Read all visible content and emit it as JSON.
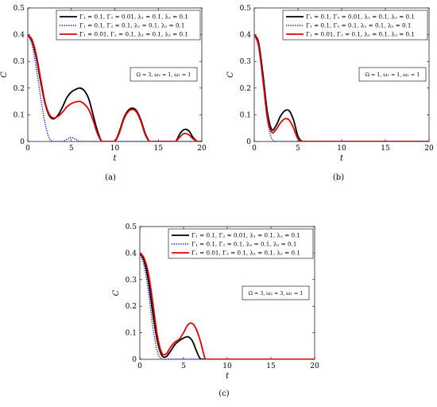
{
  "chart_data": [
    {
      "type": "line",
      "caption": "(a)",
      "xlabel": "t",
      "ylabel": "C",
      "xlim": [
        0,
        20
      ],
      "ylim": [
        0,
        0.5
      ],
      "xticks": [
        "0",
        "5",
        "10",
        "15",
        "20"
      ],
      "yticks": [
        "0",
        "0.1",
        "0.2",
        "0.3",
        "0.4",
        "0.5"
      ],
      "legend_position": "top-right",
      "annotation": "Ω = 3, ω₂ = 1, ω₁ = 1",
      "series": [
        {
          "name": "Γ₁ = 0.1, Γ₂ = 0.01, λ₁ = 0.1, λ₂ = 0.1",
          "color": "#000000",
          "style": "solid",
          "x": [
            0,
            0.5,
            1,
            1.5,
            2,
            2.5,
            3,
            3.5,
            4,
            4.5,
            5,
            5.5,
            6,
            6.5,
            7,
            7.5,
            8,
            8.5,
            9,
            9.5,
            10,
            10.5,
            11,
            11.5,
            12,
            12.5,
            13,
            13.5,
            14,
            14.5,
            15,
            15.5,
            16,
            16.5,
            17,
            17.5,
            18,
            18.5,
            19,
            19.5,
            20
          ],
          "y": [
            0.4,
            0.375,
            0.31,
            0.22,
            0.14,
            0.095,
            0.085,
            0.1,
            0.13,
            0.165,
            0.185,
            0.195,
            0.2,
            0.19,
            0.16,
            0.1,
            0.04,
            0,
            0,
            0,
            0,
            0.035,
            0.085,
            0.115,
            0.125,
            0.115,
            0.08,
            0.03,
            0,
            0,
            0,
            0,
            0,
            0,
            0,
            0.03,
            0.045,
            0.04,
            0.015,
            0,
            0
          ]
        },
        {
          "name": "Γ₁ = 0.1, Γ₂ = 0.1, λ₁ = 0.1, λ₂ = 0.1",
          "color": "#0000cc",
          "style": "dotted",
          "x": [
            0,
            0.5,
            1,
            1.5,
            2,
            2.5,
            3,
            3.5,
            4,
            4.5,
            5,
            5.5,
            6,
            7,
            8,
            10,
            12,
            14,
            16,
            18,
            20
          ],
          "y": [
            0.4,
            0.36,
            0.27,
            0.16,
            0.065,
            0.01,
            0,
            0,
            0,
            0.008,
            0.015,
            0.008,
            0,
            0,
            0,
            0,
            0,
            0,
            0,
            0,
            0
          ]
        },
        {
          "name": "Γ₁ = 0.01, Γ₂ = 0.1, λ₁ = 0.1, λ₂ = 0.1",
          "color": "#e00000",
          "style": "solid",
          "x": [
            0,
            0.5,
            1,
            1.5,
            2,
            2.5,
            3,
            3.5,
            4,
            4.5,
            5,
            5.5,
            6,
            6.5,
            7,
            7.5,
            8,
            8.5,
            9,
            9.5,
            10,
            10.5,
            11,
            11.5,
            12,
            12.5,
            13,
            13.5,
            14,
            14.5,
            15,
            15.5,
            16,
            16.5,
            17,
            17.5,
            18,
            18.5,
            19,
            19.5,
            20
          ],
          "y": [
            0.4,
            0.38,
            0.32,
            0.23,
            0.145,
            0.1,
            0.088,
            0.095,
            0.11,
            0.13,
            0.142,
            0.148,
            0.15,
            0.14,
            0.12,
            0.08,
            0.03,
            0,
            0,
            0,
            0,
            0.03,
            0.08,
            0.11,
            0.12,
            0.11,
            0.075,
            0.025,
            0,
            0,
            0,
            0,
            0,
            0,
            0,
            0.018,
            0.03,
            0.025,
            0.01,
            0,
            0
          ]
        }
      ]
    },
    {
      "type": "line",
      "caption": "(b)",
      "xlabel": "t",
      "ylabel": "C",
      "xlim": [
        0,
        20
      ],
      "ylim": [
        0,
        0.5
      ],
      "xticks": [
        "0",
        "5",
        "10",
        "15",
        "20"
      ],
      "yticks": [
        "0",
        "0.1",
        "0.2",
        "0.3",
        "0.4",
        "0.5"
      ],
      "legend_position": "top-right",
      "annotation": "Ω = 1, ω₂ = 1, ω₁ = 1",
      "series": [
        {
          "name": "Γ₁ = 0.1, Γ₂ = 0.01, λ₁ = 0.1, λ₂ = 0.1",
          "color": "#000000",
          "style": "solid",
          "x": [
            0,
            0.5,
            1,
            1.5,
            2,
            2.5,
            3,
            3.5,
            4,
            4.5,
            5,
            5.5,
            6,
            8,
            10,
            12,
            14,
            16,
            18,
            20
          ],
          "y": [
            0.4,
            0.37,
            0.25,
            0.11,
            0.045,
            0.06,
            0.095,
            0.115,
            0.115,
            0.08,
            0.02,
            0,
            0,
            0,
            0,
            0,
            0,
            0,
            0,
            0
          ]
        },
        {
          "name": "Γ₁ = 0.1, Γ₂ = 0.1, λ₁ = 0.1, λ₂ = 0.1",
          "color": "#0000cc",
          "style": "dotted",
          "x": [
            0,
            0.5,
            1,
            1.5,
            2,
            2.5,
            3,
            4,
            6,
            8,
            10,
            12,
            14,
            16,
            18,
            20
          ],
          "y": [
            0.4,
            0.35,
            0.22,
            0.08,
            0.01,
            0,
            0,
            0,
            0,
            0,
            0,
            0,
            0,
            0,
            0,
            0
          ]
        },
        {
          "name": "Γ₁ = 0.01, Γ₂ = 0.1, λ₁ = 0.1, λ₂ = 0.1",
          "color": "#e00000",
          "style": "solid",
          "x": [
            0,
            0.5,
            1,
            1.5,
            2,
            2.5,
            3,
            3.5,
            4,
            4.5,
            5,
            5.5,
            6,
            8,
            10,
            12,
            14,
            16,
            18,
            20
          ],
          "y": [
            0.4,
            0.36,
            0.23,
            0.09,
            0.035,
            0.045,
            0.07,
            0.085,
            0.08,
            0.05,
            0.01,
            0,
            0,
            0,
            0,
            0,
            0,
            0,
            0,
            0
          ]
        }
      ]
    },
    {
      "type": "line",
      "caption": "(c)",
      "xlabel": "t",
      "ylabel": "C",
      "xlim": [
        0,
        20
      ],
      "ylim": [
        0,
        0.5
      ],
      "xticks": [
        "0",
        "5",
        "10",
        "15",
        "20"
      ],
      "yticks": [
        "0",
        "0.1",
        "0.2",
        "0.3",
        "0.4",
        "0.5"
      ],
      "legend_position": "top-right",
      "annotation": "Ω = 3, ω₂ = 3, ω₁ = 1",
      "series": [
        {
          "name": "Γ₁ = 0.1, Γ₂ = 0.01, λ₁ = 0.1, λ₂ = 0.1",
          "color": "#000000",
          "style": "solid",
          "x": [
            0,
            0.5,
            1,
            1.5,
            2,
            2.5,
            3,
            3.5,
            4,
            4.5,
            5,
            5.5,
            6,
            6.5,
            7,
            8,
            10,
            12,
            14,
            16,
            18,
            20
          ],
          "y": [
            0.4,
            0.37,
            0.29,
            0.17,
            0.07,
            0.015,
            0.01,
            0.03,
            0.055,
            0.07,
            0.08,
            0.085,
            0.07,
            0.03,
            0,
            0,
            0,
            0,
            0,
            0,
            0,
            0
          ]
        },
        {
          "name": "Γ₁ = 0.1, Γ₂ = 0.1, λ₁ = 0.1, λ₂ = 0.1",
          "color": "#0000cc",
          "style": "dotted",
          "x": [
            0,
            0.5,
            1,
            1.5,
            2,
            2.5,
            3,
            4,
            6,
            8,
            10,
            12,
            14,
            16,
            18,
            20
          ],
          "y": [
            0.4,
            0.35,
            0.25,
            0.12,
            0.03,
            0,
            0,
            0,
            0,
            0,
            0,
            0,
            0,
            0,
            0,
            0
          ]
        },
        {
          "name": "Γ₁ = 0.01, Γ₂ = 0.1, λ₁ = 0.1, λ₂ = 0.1",
          "color": "#e00000",
          "style": "solid",
          "x": [
            0,
            0.5,
            1,
            1.5,
            2,
            2.5,
            3,
            3.5,
            4,
            4.5,
            5,
            5.5,
            6,
            6.5,
            7,
            7.5,
            8,
            10,
            12,
            14,
            16,
            18,
            20
          ],
          "y": [
            0.4,
            0.38,
            0.32,
            0.21,
            0.09,
            0.025,
            0.02,
            0.045,
            0.065,
            0.075,
            0.1,
            0.13,
            0.135,
            0.11,
            0.06,
            0,
            0,
            0,
            0,
            0,
            0,
            0,
            0
          ]
        }
      ]
    }
  ]
}
